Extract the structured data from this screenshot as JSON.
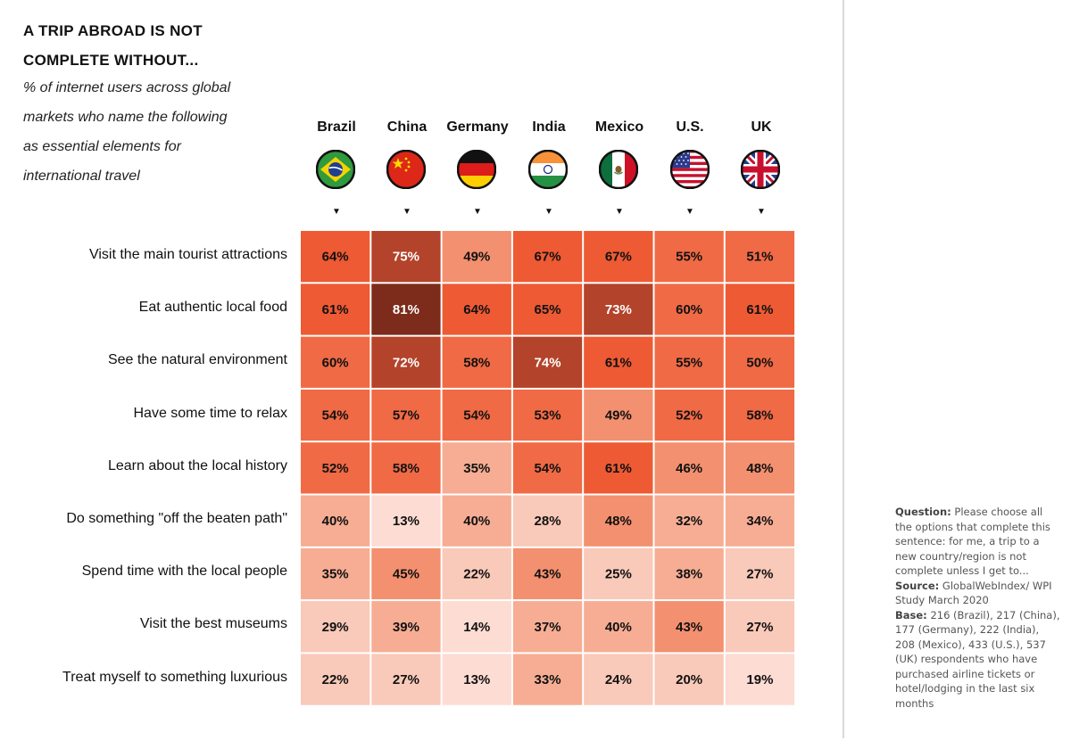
{
  "title_line1": "A TRIP ABROAD IS NOT",
  "title_line2": "COMPLETE WITHOUT...",
  "subtitle_lines": [
    "% of internet users across global",
    "markets who name the following",
    "as essential elements for",
    "international travel"
  ],
  "note": {
    "question_label": "Question:",
    "question_text": "Please choose all the options that complete this sentence: for me, a trip to a new country/region is not complete unless I get to...",
    "source_label": "Source:",
    "source_text": "GlobalWebIndex/ WPI Study March 2020",
    "base_label": "Base:",
    "base_text": "216 (Brazil), 217 (China), 177 (Germany), 222 (India), 208 (Mexico), 433 (U.S.), 537 (UK) respondents who have purchased airline tickets or hotel/lodging in the last six months"
  },
  "arrow_glyph": "▼",
  "chart_data": {
    "type": "heatmap",
    "title": "A TRIP ABROAD IS NOT COMPLETE WITHOUT...",
    "unit": "%",
    "columns": [
      "Brazil",
      "China",
      "Germany",
      "India",
      "Mexico",
      "U.S.",
      "UK"
    ],
    "rows": [
      "Visit the main tourist attractions",
      "Eat authentic local food",
      "See the natural environment",
      "Have some time to relax",
      "Learn about the local history",
      "Do something \"off the beaten path\"",
      "Spend time with the local people",
      "Visit the best museums",
      "Treat myself to something luxurious"
    ],
    "values": [
      [
        64,
        75,
        49,
        67,
        67,
        55,
        51
      ],
      [
        61,
        81,
        64,
        65,
        73,
        60,
        61
      ],
      [
        60,
        72,
        58,
        74,
        61,
        55,
        50
      ],
      [
        54,
        57,
        54,
        53,
        49,
        52,
        58
      ],
      [
        52,
        58,
        35,
        54,
        61,
        46,
        48
      ],
      [
        40,
        13,
        40,
        28,
        48,
        32,
        34
      ],
      [
        35,
        45,
        22,
        43,
        25,
        38,
        27
      ],
      [
        29,
        39,
        14,
        37,
        40,
        43,
        27
      ],
      [
        22,
        27,
        13,
        33,
        24,
        20,
        19
      ]
    ],
    "colors": {
      "c81": "#7d2b1a",
      "c72to75": "#b3432a",
      "c61to67": "#ee5a33",
      "c50to60": "#f06a45",
      "c43to49": "#f3906f",
      "c32to40": "#f6ad94",
      "c20to29": "#f9c9b9",
      "c13to19": "#fcdcd3",
      "text_dark": "#111111",
      "text_light": "#ffffff"
    },
    "flags": [
      "brazil-flag",
      "china-flag",
      "germany-flag",
      "india-flag",
      "mexico-flag",
      "us-flag",
      "uk-flag"
    ]
  }
}
